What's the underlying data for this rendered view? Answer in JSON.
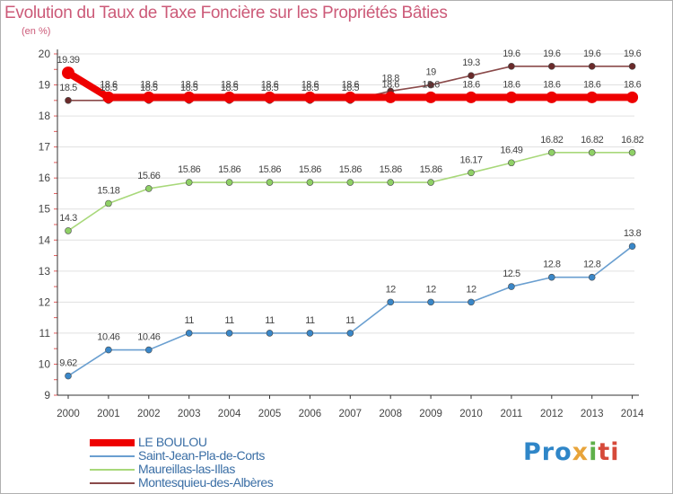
{
  "header": {
    "title": "Evolution du Taux de Taxe Foncière sur les Propriétés Bâties",
    "subtitle": "(en %)"
  },
  "logo": {
    "text": "Proxiti",
    "parts": [
      "Pro",
      "x",
      "i",
      "ti"
    ]
  },
  "colors": {
    "text": "#cc5a78",
    "axis": "#333333",
    "grid": "#e0e0e0",
    "label": "#444444",
    "legend_text": "#3a6ea5"
  },
  "chart_data": {
    "type": "line",
    "title": "Evolution du Taux de Taxe Foncière sur les Propriétés Bâties",
    "ylabel": "(en %)",
    "xlabel": "",
    "ylim": [
      9,
      20
    ],
    "yticks": [
      9,
      10,
      11,
      12,
      13,
      14,
      15,
      16,
      17,
      18,
      19,
      20
    ],
    "x": [
      "2000",
      "2001",
      "2002",
      "2003",
      "2004",
      "2005",
      "2006",
      "2007",
      "2008",
      "2009",
      "2010",
      "2011",
      "2012",
      "2013",
      "2014"
    ],
    "grid": true,
    "legend_position": "bottom-left",
    "series": [
      {
        "name": "Saint-Jean-Pla-de-Corts",
        "color": "#6a9fd0",
        "marker": "#3a87c8",
        "style": "thin",
        "values": [
          9.62,
          10.46,
          10.46,
          11,
          11,
          11,
          11,
          11,
          12,
          12,
          12,
          12.5,
          12.8,
          12.8,
          13.8
        ],
        "labels": [
          "9.62",
          "10.46",
          "10.46",
          "11",
          "11",
          "11",
          "11",
          "11",
          "12",
          "12",
          "12",
          "12.5",
          "12.8",
          "12.8",
          "13.8"
        ]
      },
      {
        "name": "Maureillas-las-Illas",
        "color": "#a8d87a",
        "marker": "#8fd066",
        "style": "thin",
        "values": [
          14.3,
          15.18,
          15.66,
          15.86,
          15.86,
          15.86,
          15.86,
          15.86,
          15.86,
          15.86,
          16.17,
          16.49,
          16.82,
          16.82,
          16.82
        ],
        "labels": [
          "14.3",
          "15.18",
          "15.66",
          "15.86",
          "15.86",
          "15.86",
          "15.86",
          "15.86",
          "15.86",
          "15.86",
          "16.17",
          "16.49",
          "16.82",
          "16.82",
          "16.82"
        ]
      },
      {
        "name": "Montesquieu-des-Albères",
        "color": "#8a4a4a",
        "marker": "#6a2a2a",
        "style": "thin",
        "values": [
          18.5,
          18.5,
          18.5,
          18.5,
          18.5,
          18.5,
          18.5,
          18.5,
          18.8,
          19,
          19.3,
          19.6,
          19.6,
          19.6,
          19.6
        ],
        "labels": [
          "18.5",
          "18.5",
          "18.5",
          "18.5",
          "18.5",
          "18.5",
          "18.5",
          "18.5",
          "18.8",
          "19",
          "19.3",
          "19.6",
          "19.6",
          "19.6",
          "19.6"
        ]
      },
      {
        "name": "LE BOULOU",
        "color": "#ee0000",
        "marker": "#ee0000",
        "style": "thick",
        "values": [
          19.39,
          18.6,
          18.6,
          18.6,
          18.6,
          18.6,
          18.6,
          18.6,
          18.6,
          18.6,
          18.6,
          18.6,
          18.6,
          18.6,
          18.6
        ],
        "labels": [
          "19.39",
          "18.6",
          "18.6",
          "18.6",
          "18.6",
          "18.6",
          "18.6",
          "18.6",
          "18.6",
          "18.6",
          "18.6",
          "18.6",
          "18.6",
          "18.6",
          "18.6"
        ]
      }
    ],
    "legend_order": [
      "LE BOULOU",
      "Saint-Jean-Pla-de-Corts",
      "Maureillas-las-Illas",
      "Montesquieu-des-Albères"
    ]
  }
}
